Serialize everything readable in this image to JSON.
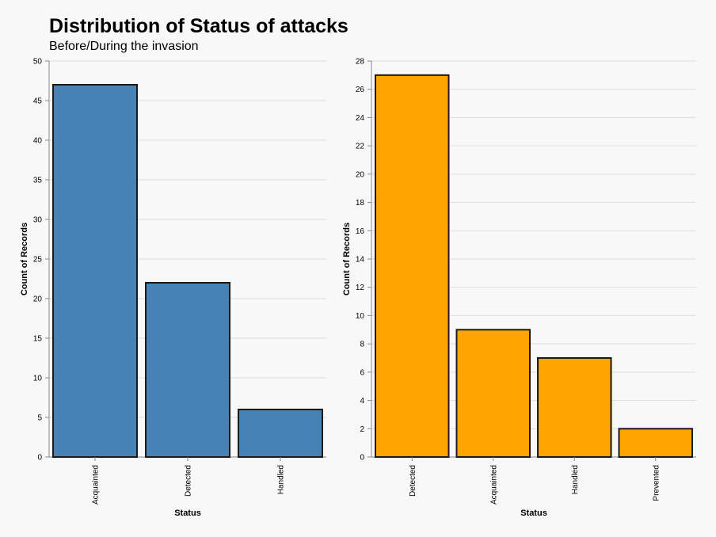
{
  "title": "Distribution of Status of attacks",
  "subtitle": "Before/During the invasion",
  "chart_data": [
    {
      "type": "bar",
      "xlabel": "Status",
      "ylabel": "Count of Records",
      "categories": [
        "Acquainted",
        "Detected",
        "Handled"
      ],
      "values": [
        47,
        22,
        6
      ],
      "ylim": [
        0,
        50
      ],
      "yticks": [
        0,
        5,
        10,
        15,
        20,
        25,
        30,
        35,
        40,
        45,
        50
      ],
      "color": "#4682b4",
      "grid": true
    },
    {
      "type": "bar",
      "xlabel": "Status",
      "ylabel": "Count of Records",
      "categories": [
        "Detected",
        "Acquainted",
        "Handled",
        "Prevented"
      ],
      "values": [
        27,
        9,
        7,
        2
      ],
      "ylim": [
        0,
        28
      ],
      "yticks": [
        0,
        2,
        4,
        6,
        8,
        10,
        12,
        14,
        16,
        18,
        20,
        22,
        24,
        26,
        28
      ],
      "color": "#ffa500",
      "grid": true
    }
  ]
}
